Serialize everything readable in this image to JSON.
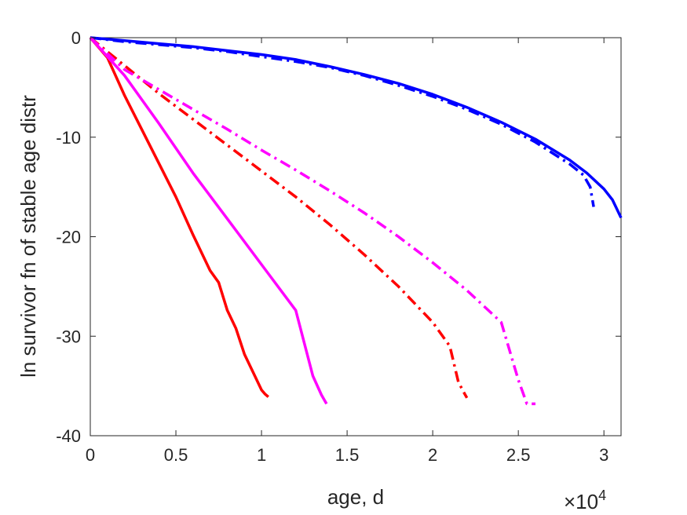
{
  "chart_data": {
    "type": "line",
    "title": "",
    "xlabel": "age, d",
    "ylabel": "ln survivor fn of stable age distr",
    "x_exponent_label": {
      "base": "×10",
      "power": "4"
    },
    "xlim": [
      0,
      3.1
    ],
    "ylim": [
      -40,
      0
    ],
    "x_ticks": [
      0,
      0.5,
      1,
      1.5,
      2,
      2.5,
      3
    ],
    "x_tick_labels": [
      "0",
      "0.5",
      "1",
      "1.5",
      "2",
      "2.5",
      "3"
    ],
    "y_ticks": [
      0,
      -10,
      -20,
      -30,
      -40
    ],
    "y_tick_labels": [
      "0",
      "-10",
      "-20",
      "-30",
      "-40"
    ],
    "grid": false,
    "legend": "none",
    "series": [
      {
        "color": "#0000ff",
        "style": "solid",
        "x": [
          0,
          0.2,
          0.4,
          0.6,
          0.8,
          1.0,
          1.2,
          1.4,
          1.6,
          1.8,
          2.0,
          2.2,
          2.4,
          2.6,
          2.8,
          2.9,
          3.0,
          3.05,
          3.1
        ],
        "y": [
          0,
          -0.3,
          -0.6,
          -0.9,
          -1.3,
          -1.7,
          -2.2,
          -2.9,
          -3.7,
          -4.6,
          -5.7,
          -7.0,
          -8.5,
          -10.2,
          -12.3,
          -13.6,
          -15.2,
          -16.3,
          -18.1
        ]
      },
      {
        "color": "#0000ff",
        "style": "dashdot",
        "x": [
          0,
          0.2,
          0.4,
          0.6,
          0.8,
          1.0,
          1.2,
          1.4,
          1.6,
          1.8,
          2.0,
          2.2,
          2.4,
          2.6,
          2.8,
          2.88,
          2.92,
          2.94
        ],
        "y": [
          0,
          -0.4,
          -0.7,
          -1.0,
          -1.4,
          -1.9,
          -2.4,
          -3.0,
          -3.8,
          -4.8,
          -5.9,
          -7.2,
          -8.7,
          -10.5,
          -12.7,
          -13.8,
          -15.0,
          -17.0
        ]
      },
      {
        "color": "#ff0000",
        "style": "solid",
        "x": [
          0,
          0.1,
          0.2,
          0.3,
          0.4,
          0.5,
          0.6,
          0.7,
          0.75,
          0.8,
          0.85,
          0.9,
          0.95,
          1.0,
          1.02,
          1.04
        ],
        "y": [
          0,
          -2.0,
          -5.8,
          -9.2,
          -12.6,
          -16.0,
          -19.8,
          -23.4,
          -24.6,
          -27.4,
          -29.2,
          -31.8,
          -33.6,
          -35.4,
          -35.8,
          -36.1
        ]
      },
      {
        "color": "#ff00ff",
        "style": "solid",
        "x": [
          0,
          0.2,
          0.4,
          0.6,
          0.8,
          1.0,
          1.2,
          1.3,
          1.35,
          1.38
        ],
        "y": [
          0,
          -3.8,
          -8.6,
          -13.6,
          -18.2,
          -22.8,
          -27.4,
          -34.0,
          -35.9,
          -36.8
        ]
      },
      {
        "color": "#ff0000",
        "style": "dashdot",
        "x": [
          0,
          0.2,
          0.4,
          0.6,
          0.8,
          1.0,
          1.2,
          1.4,
          1.6,
          1.8,
          2.0,
          2.1,
          2.15,
          2.18,
          2.2
        ],
        "y": [
          0,
          -2.8,
          -5.6,
          -8.2,
          -10.8,
          -13.4,
          -16.0,
          -18.8,
          -21.8,
          -25.0,
          -28.6,
          -31.0,
          -34.6,
          -35.6,
          -36.2
        ]
      },
      {
        "color": "#ff00ff",
        "style": "dashdot",
        "x": [
          0,
          0.2,
          0.4,
          0.6,
          0.8,
          1.0,
          1.2,
          1.4,
          1.6,
          1.8,
          2.0,
          2.2,
          2.4,
          2.5,
          2.55,
          2.6
        ],
        "y": [
          0,
          -3.2,
          -5.2,
          -7.2,
          -9.2,
          -11.3,
          -13.3,
          -15.4,
          -17.6,
          -20.0,
          -22.6,
          -25.4,
          -28.6,
          -34.4,
          -36.8,
          -36.8
        ]
      }
    ]
  }
}
